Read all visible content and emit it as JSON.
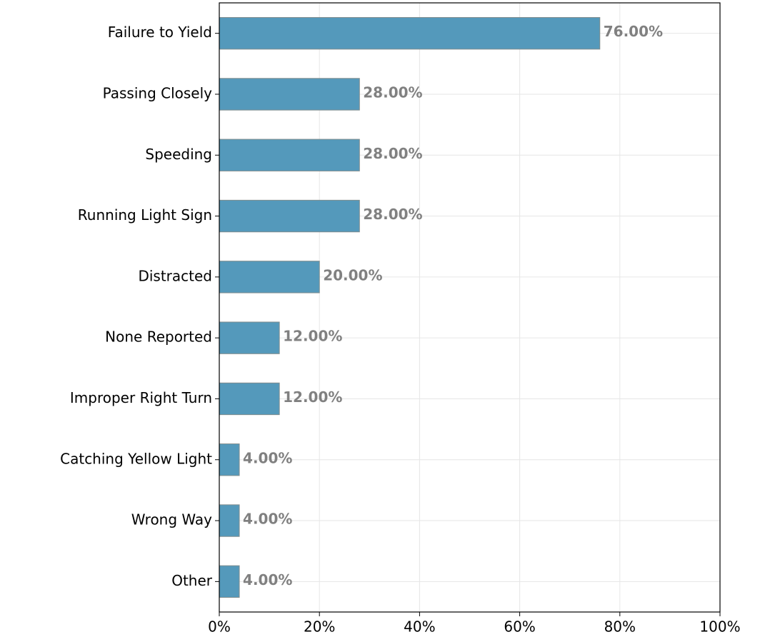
{
  "chart_data": {
    "type": "bar",
    "orientation": "horizontal",
    "categories": [
      "Failure to Yield",
      "Passing Closely",
      "Speeding",
      "Running Light Sign",
      "Distracted",
      "None Reported",
      "Improper Right Turn",
      "Catching Yellow Light",
      "Wrong Way",
      "Other"
    ],
    "values": [
      76,
      28,
      28,
      28,
      20,
      12,
      12,
      4,
      4,
      4
    ],
    "value_labels": [
      "76.00%",
      "28.00%",
      "28.00%",
      "28.00%",
      "20.00%",
      "12.00%",
      "12.00%",
      "4.00%",
      "4.00%",
      "4.00%"
    ],
    "color": "#5499bb",
    "xlim": [
      0,
      100
    ],
    "xticks": [
      {
        "value": 0,
        "label": "0%"
      },
      {
        "value": 20,
        "label": "20%"
      },
      {
        "value": 40,
        "label": "40%"
      },
      {
        "value": 60,
        "label": "60%"
      },
      {
        "value": 80,
        "label": "80%"
      },
      {
        "value": 100,
        "label": "100%"
      }
    ],
    "grid": true
  }
}
